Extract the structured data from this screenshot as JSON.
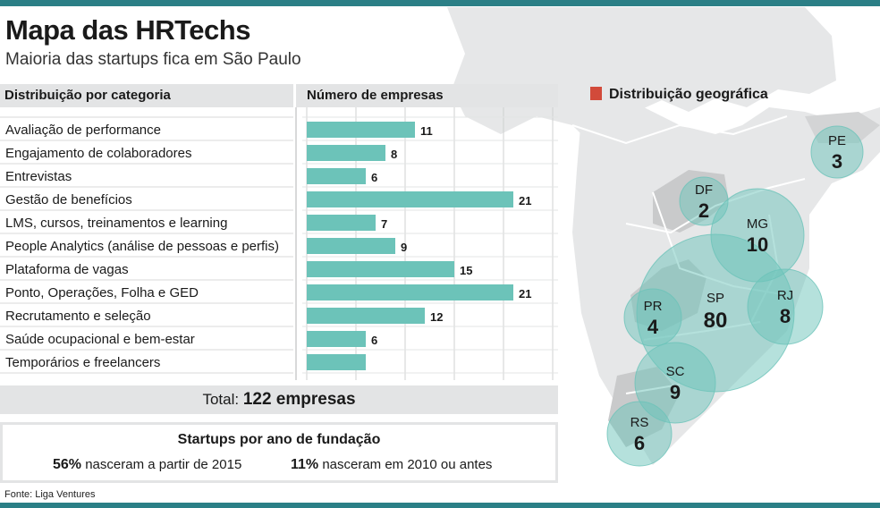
{
  "header": {
    "title": "Mapa das HRTechs",
    "subtitle": "Maioria das startups fica em São Paulo"
  },
  "table_headers": {
    "category": "Distribuição por categoria",
    "count": "Número de empresas"
  },
  "chart_data": {
    "type": "bar",
    "orientation": "horizontal",
    "categories": [
      "Avaliação de performance",
      "Engajamento de colaboradores",
      "Entrevistas",
      "Gestão de benefícios",
      "LMS, cursos, treinamentos e learning",
      "People Analytics (análise de pessoas e perfis)",
      "Plataforma de vagas",
      "Ponto, Operações, Folha e GED",
      "Recrutamento e seleção",
      "Saúde ocupacional e bem-estar",
      "Temporários e freelancers"
    ],
    "values": [
      11,
      8,
      6,
      21,
      7,
      9,
      15,
      21,
      12,
      6,
      6
    ],
    "value_labels": [
      "11",
      "8",
      "6",
      "21",
      "7",
      "9",
      "15",
      "21",
      "12",
      "6",
      ""
    ],
    "xlim": [
      0,
      25
    ],
    "grid": true,
    "bar_color": "#6cc3b9"
  },
  "total": {
    "label": "Total:",
    "value": "122 empresas"
  },
  "founding": {
    "title": "Startups por ano de fundação",
    "stat1_value": "56%",
    "stat1_text": "nasceram a partir de 2015",
    "stat2_value": "11%",
    "stat2_text": "nasceram em 2010 ou antes"
  },
  "source": "Fonte: Liga Ventures",
  "map": {
    "legend_label": "Distribuição geográfica",
    "legend_color": "#d24a3a",
    "bubble_color": "#6cc3b9",
    "states": [
      {
        "code": "PE",
        "value": "3"
      },
      {
        "code": "DF",
        "value": "2"
      },
      {
        "code": "MG",
        "value": "10"
      },
      {
        "code": "SP",
        "value": "80"
      },
      {
        "code": "RJ",
        "value": "8"
      },
      {
        "code": "PR",
        "value": "4"
      },
      {
        "code": "SC",
        "value": "9"
      },
      {
        "code": "RS",
        "value": "6"
      }
    ]
  }
}
